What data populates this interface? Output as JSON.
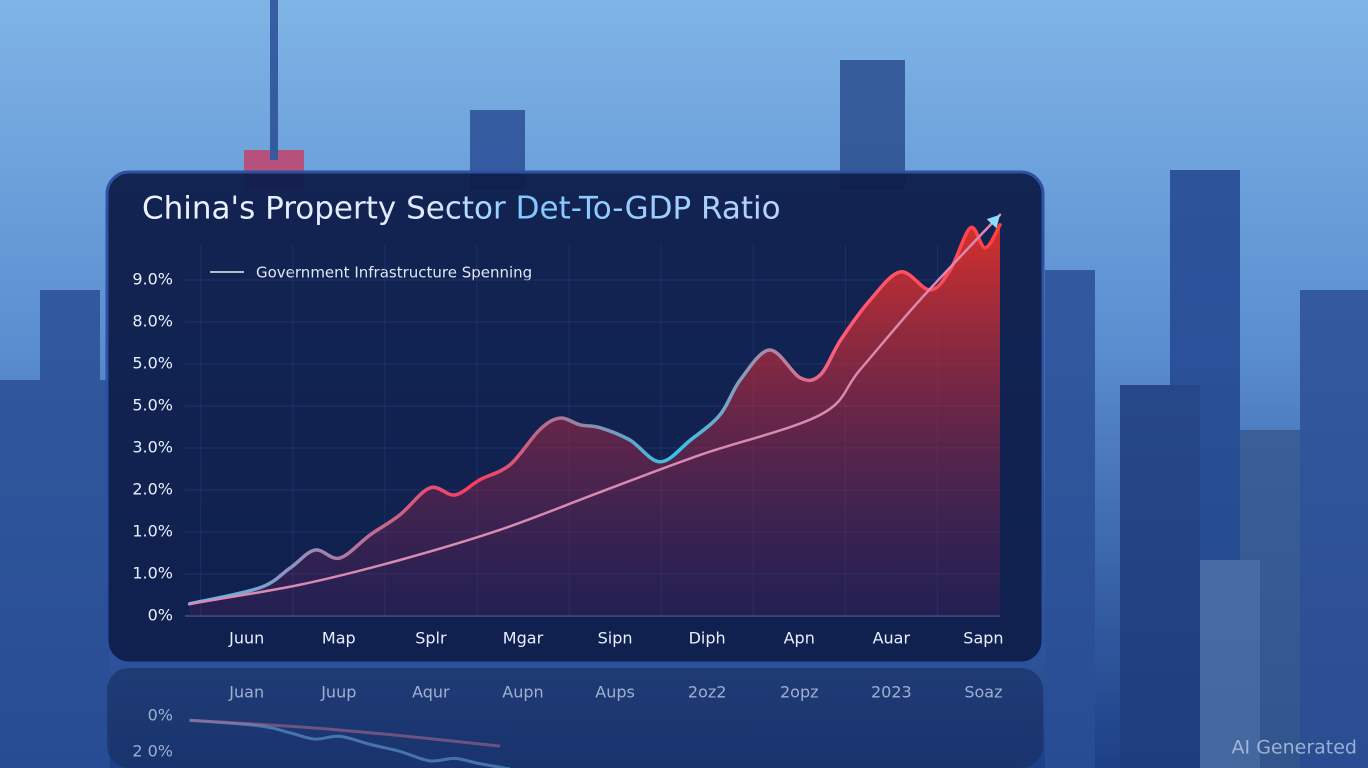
{
  "chart_data": {
    "type": "line",
    "title": "China's Property Sector Det-To-GDP Ratio",
    "categories": [
      "Juun",
      "Map",
      "Splr",
      "Mgar",
      "Sipn",
      "Diph",
      "Apn",
      "Auar",
      "Sapn"
    ],
    "reflected_categories": [
      "Juan",
      "Juup",
      "Aqur",
      "Aupn",
      "Aups",
      "2oz2",
      "2opz",
      "2023",
      "Soaz"
    ],
    "y_labels": [
      "0%",
      "1.0%",
      "1.0%",
      "2.0%",
      "3.0%",
      "5.0%",
      "5.0%",
      "8.0%",
      "9.0%"
    ],
    "reflected_y_labels": [
      "0%",
      "2 0%"
    ],
    "watermark": "AI Generated",
    "xlim": [
      -0.67,
      8.18
    ],
    "ylim": [
      0,
      8.83
    ],
    "grid": true,
    "series": [
      {
        "name": "Government Infrastructure Spenning",
        "color": "#e8365a",
        "area": true,
        "x": [
          -0.62,
          0.14,
          0.47,
          0.74,
          1.01,
          1.34,
          1.66,
          1.99,
          2.26,
          2.53,
          2.86,
          3.18,
          3.4,
          3.62,
          3.84,
          4.16,
          4.49,
          4.82,
          5.14,
          5.36,
          5.68,
          6.01,
          6.23,
          6.45,
          6.77,
          7.1,
          7.42,
          7.64,
          7.86,
          8.02,
          8.18
        ],
        "values": [
          0.29,
          0.67,
          1.14,
          1.57,
          1.38,
          1.93,
          2.4,
          3.05,
          2.88,
          3.24,
          3.6,
          4.43,
          4.71,
          4.55,
          4.48,
          4.19,
          3.67,
          4.19,
          4.79,
          5.62,
          6.33,
          5.67,
          5.74,
          6.57,
          7.52,
          8.19,
          7.76,
          8.24,
          9.24,
          8.76,
          9.31
        ]
      },
      {
        "color": "#d98ab0",
        "x": [
          -0.62,
          0.57,
          1.66,
          2.75,
          3.84,
          4.92,
          6.23,
          6.66,
          7.31,
          8.18
        ],
        "values": [
          0.29,
          0.74,
          1.33,
          2.05,
          2.95,
          3.83,
          4.79,
          5.86,
          7.52,
          9.55
        ]
      }
    ]
  }
}
